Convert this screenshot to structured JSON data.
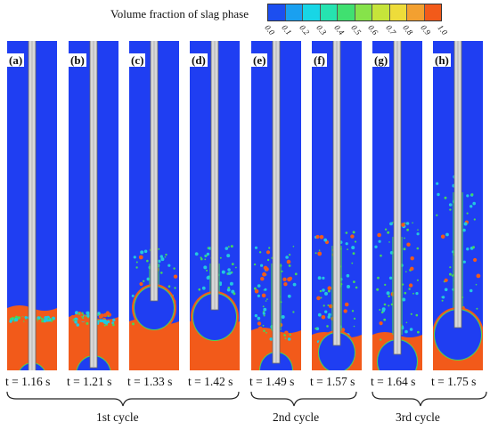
{
  "colorbar": {
    "title": "Volume fraction of slag phase",
    "ticks": [
      "0.0",
      "0.1",
      "0.2",
      "0.3",
      "0.4",
      "0.5",
      "0.6",
      "0.7",
      "0.8",
      "0.9",
      "1.0"
    ],
    "colors": [
      "#1c4ef0",
      "#1aa0f0",
      "#18d6e6",
      "#26e3b0",
      "#40e070",
      "#86e34a",
      "#c6e43a",
      "#eedc3a",
      "#f3a030",
      "#f25a1a"
    ]
  },
  "panels": [
    {
      "label": "(a)",
      "time": "t = 1.16 s"
    },
    {
      "label": "(b)",
      "time": "t = 1.21 s"
    },
    {
      "label": "(c)",
      "time": "t = 1.33 s"
    },
    {
      "label": "(d)",
      "time": "t = 1.42 s"
    },
    {
      "label": "(e)",
      "time": "t = 1.49 s"
    },
    {
      "label": "(f)",
      "time": "t = 1.57 s"
    },
    {
      "label": "(g)",
      "time": "t = 1.64 s"
    },
    {
      "label": "(h)",
      "time": "t = 1.75 s"
    }
  ],
  "cycles": [
    "1st cycle",
    "2nd cycle",
    "3rd cycle"
  ],
  "palette": {
    "blue": "#1f3ef2",
    "orange": "#f25a1a",
    "green": "#46d65a",
    "cyan": "#22c8e0",
    "lance": "#d8d8d8"
  }
}
